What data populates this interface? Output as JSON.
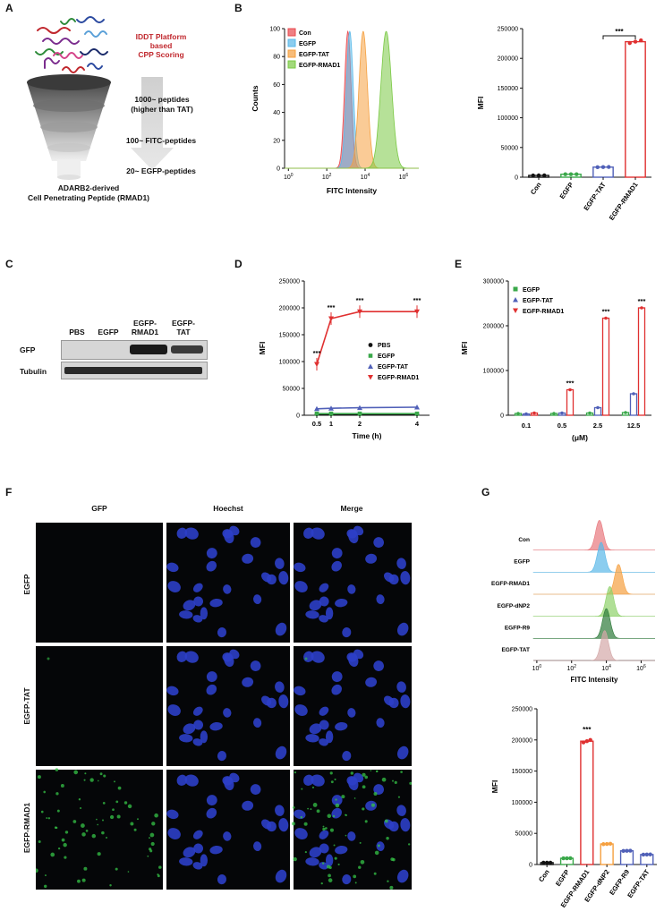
{
  "panels": {
    "A": "A",
    "B": "B",
    "C": "C",
    "D": "D",
    "E": "E",
    "F": "F",
    "G": "G"
  },
  "panel_a": {
    "platform_lines": [
      "IDDT Platform",
      "based",
      "CPP Scoring"
    ],
    "stages": [
      "1000~ peptides",
      "(higher than TAT)",
      "100~ FITC-peptides",
      "20~ EGFP-peptides"
    ],
    "caption_lines": [
      "ADARB2-derived",
      "Cell Penetrating Peptide (RMAD1)"
    ],
    "colors": {
      "platform": "#c0272d"
    }
  },
  "panel_c": {
    "lanes": [
      "PBS",
      "EGFP",
      "EGFP-",
      "EGFP-"
    ],
    "lanes_line2": [
      "",
      "",
      "RMAD1",
      "TAT"
    ],
    "rows": [
      "GFP",
      "Tubulin"
    ]
  },
  "panel_f": {
    "columns": [
      "GFP",
      "Hoechst",
      "Merge"
    ],
    "rows": [
      "EGFP",
      "EGFP-TAT",
      "EGFP-RMAD1"
    ]
  },
  "chart_data": [
    {
      "id": "B-left",
      "type": "area",
      "xlabel": "FITC Intensity",
      "ylabel": "Counts",
      "yticks": [
        "0",
        "20",
        "40",
        "60",
        "80",
        "100"
      ],
      "xticks": [
        "10^0",
        "10^2",
        "10^4",
        "10^6"
      ],
      "series": [
        {
          "name": "Con",
          "color": "#e8484e",
          "peak": 3.3,
          "width": 0.17
        },
        {
          "name": "EGFP",
          "color": "#5ab8e8",
          "peak": 3.4,
          "width": 0.18
        },
        {
          "name": "EGFP-TAT",
          "color": "#f5a040",
          "peak": 4.1,
          "width": 0.22
        },
        {
          "name": "EGFP-RMAD1",
          "color": "#7ac943",
          "peak": 5.3,
          "width": 0.28
        }
      ]
    },
    {
      "id": "B-right",
      "type": "bar",
      "ylabel": "MFI",
      "ylim": [
        0,
        250000
      ],
      "yticks": [
        "0",
        "50000",
        "100000",
        "150000",
        "200000",
        "250000"
      ],
      "categories": [
        "Con",
        "EGFP",
        "EGFP-TAT",
        "EGFP-RMAD1"
      ],
      "values": [
        3000,
        5000,
        17000,
        228000
      ],
      "colors": [
        "#111111",
        "#3aa84a",
        "#5060b8",
        "#e03030"
      ],
      "annotation": "***"
    },
    {
      "id": "D",
      "type": "line",
      "xlabel": "Time (h)",
      "ylabel": "MFI",
      "ylim": [
        0,
        250000
      ],
      "yticks": [
        "0",
        "50000",
        "100000",
        "150000",
        "200000",
        "250000"
      ],
      "x": [
        0.5,
        1,
        2,
        4
      ],
      "xticks": [
        "0.5",
        "1",
        "2",
        "4"
      ],
      "series": [
        {
          "name": "PBS",
          "color": "#111111",
          "marker": "circle",
          "values": [
            2000,
            2000,
            2000,
            2000
          ]
        },
        {
          "name": "EGFP",
          "color": "#3aa84a",
          "marker": "square",
          "values": [
            3000,
            3000,
            3000,
            3000
          ]
        },
        {
          "name": "EGFP-TAT",
          "color": "#5060b8",
          "marker": "triangle-up",
          "values": [
            12000,
            13000,
            14000,
            15000
          ]
        },
        {
          "name": "EGFP-RMAD1",
          "color": "#e03030",
          "marker": "triangle-down",
          "values": [
            95000,
            180000,
            193000,
            193000
          ]
        }
      ],
      "annotations": [
        "***",
        "***",
        "***",
        "***"
      ]
    },
    {
      "id": "E",
      "type": "bar",
      "xlabel": "(μM)",
      "ylabel": "MFI",
      "ylim": [
        0,
        300000
      ],
      "yticks": [
        "0",
        "100000",
        "200000",
        "300000"
      ],
      "categories": [
        "0.1",
        "0.5",
        "2.5",
        "12.5"
      ],
      "series": [
        {
          "name": "EGFP",
          "color": "#3aa84a",
          "values": [
            4000,
            4000,
            5000,
            6000
          ]
        },
        {
          "name": "EGFP-TAT",
          "color": "#5060b8",
          "values": [
            3000,
            5000,
            17000,
            48000
          ]
        },
        {
          "name": "EGFP-RMAD1",
          "color": "#e03030",
          "values": [
            5000,
            57000,
            217000,
            240000
          ]
        }
      ],
      "annotations": [
        "",
        "***",
        "***",
        "***"
      ]
    },
    {
      "id": "G-top",
      "type": "area",
      "xlabel": "FITC Intensity",
      "xticks": [
        "10^0",
        "10^2",
        "10^4",
        "10^6"
      ],
      "series": [
        {
          "name": "Con",
          "color": "#e8787e",
          "peak": 3.8
        },
        {
          "name": "EGFP",
          "color": "#5ab8e8",
          "peak": 3.9
        },
        {
          "name": "EGFP-RMAD1",
          "color": "#f5a040",
          "peak": 4.9
        },
        {
          "name": "EGFP-dNP2",
          "color": "#8ed16a",
          "peak": 4.4
        },
        {
          "name": "EGFP-R9",
          "color": "#2e7a3a",
          "peak": 4.2
        },
        {
          "name": "EGFP-TAT",
          "color": "#d4a8a8",
          "peak": 4.1
        }
      ]
    },
    {
      "id": "G-bottom",
      "type": "bar",
      "ylabel": "MFI",
      "ylim": [
        0,
        250000
      ],
      "yticks": [
        "0",
        "50000",
        "100000",
        "150000",
        "200000",
        "250000"
      ],
      "categories": [
        "Con",
        "EGFP",
        "EGFP-RMAD1",
        "EGFP-dNP2",
        "EGFP-R9",
        "EGFP-TAT"
      ],
      "values": [
        3000,
        10000,
        198000,
        33000,
        22000,
        16000
      ],
      "colors": [
        "#111111",
        "#3aa84a",
        "#e03030",
        "#f5a040",
        "#5060b8",
        "#5060b8"
      ],
      "annotation": "***"
    }
  ]
}
